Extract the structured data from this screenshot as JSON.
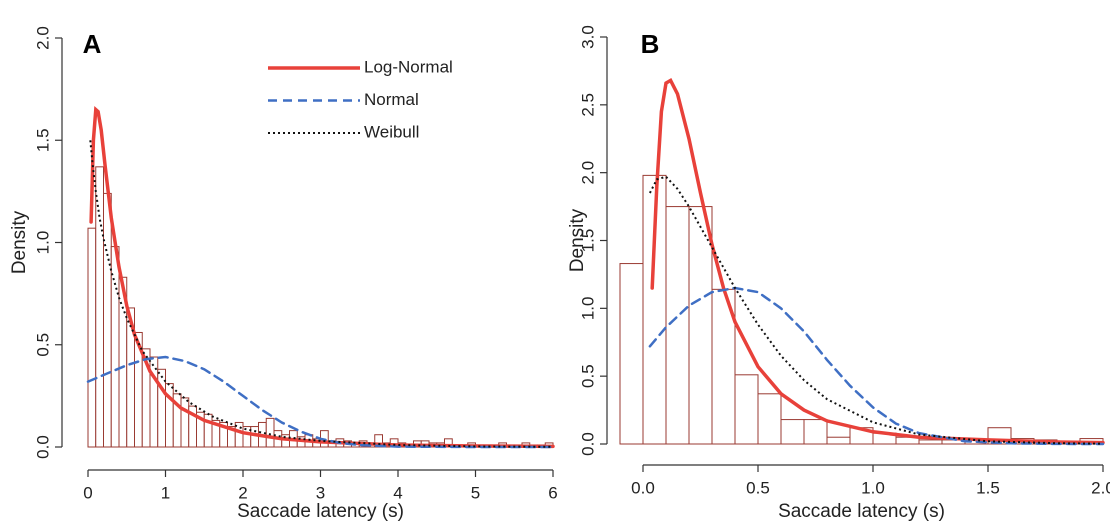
{
  "chart_data": [
    {
      "type": "histogram",
      "panel_label": "A",
      "x_label": "Saccade latency (s)",
      "y_label": "Density",
      "xlim": [
        0,
        6
      ],
      "xticks": [
        0,
        1,
        2,
        3,
        4,
        5,
        6
      ],
      "ylim": [
        0,
        2
      ],
      "yticks": [
        {
          "value": 0,
          "label": "0.0"
        },
        0.5,
        {
          "value": 1,
          "label": "1.0"
        },
        1.5,
        {
          "value": 2,
          "label": "2.0"
        }
      ],
      "bar_color": "#9a3a32",
      "legend": "upper right",
      "bins": [
        0,
        0.1,
        0.2,
        0.3,
        0.4,
        0.5,
        0.6,
        0.7,
        0.8,
        0.9,
        1,
        1.1,
        1.2,
        1.3,
        1.4,
        1.5,
        1.6,
        1.7,
        1.8,
        1.9,
        2,
        2.1,
        2.2,
        2.3,
        2.4,
        2.5,
        2.6,
        2.7,
        2.8,
        2.9,
        3,
        3.1,
        3.2,
        3.3,
        3.4,
        3.5,
        3.6,
        3.7,
        3.8,
        3.9,
        4,
        4.1,
        4.2,
        4.3,
        4.4,
        4.5,
        4.6,
        4.7,
        4.8,
        4.9,
        5,
        5.1,
        5.2,
        5.3,
        5.4,
        5.5,
        5.6,
        5.7,
        5.8,
        5.9,
        6
      ],
      "counts": [
        1.07,
        1.37,
        1.24,
        0.98,
        0.83,
        0.68,
        0.56,
        0.48,
        0.44,
        0.38,
        0.31,
        0.26,
        0.24,
        0.2,
        0.17,
        0.16,
        0.13,
        0.12,
        0.1,
        0.12,
        0.1,
        0.1,
        0.12,
        0.14,
        0.08,
        0.06,
        0.08,
        0.05,
        0.06,
        0.04,
        0.08,
        0.03,
        0.04,
        0.03,
        0.02,
        0.03,
        0.02,
        0.06,
        0.02,
        0.04,
        0.02,
        0.01,
        0.03,
        0.03,
        0.02,
        0.02,
        0.04,
        0.01,
        0.01,
        0.02,
        0.01,
        0.01,
        0.01,
        0.02,
        0.01,
        0.01,
        0.02,
        0.01,
        0.01,
        0.02
      ],
      "series": [
        {
          "name": "Log-Normal",
          "color": "#e8413a",
          "dash": "solid",
          "x": [
            0.04,
            0.07,
            0.1,
            0.13,
            0.17,
            0.22,
            0.3,
            0.4,
            0.5,
            0.6,
            0.8,
            1,
            1.2,
            1.5,
            2,
            2.5,
            3,
            4,
            5,
            6
          ],
          "values": [
            1.1,
            1.5,
            1.65,
            1.64,
            1.55,
            1.38,
            1.12,
            0.88,
            0.69,
            0.55,
            0.37,
            0.26,
            0.19,
            0.13,
            0.07,
            0.04,
            0.025,
            0.01,
            0.005,
            0.003
          ]
        },
        {
          "name": "Normal",
          "color": "#3f6fc4",
          "dash": "dashed",
          "x": [
            0,
            0.25,
            0.5,
            0.75,
            1,
            1.25,
            1.5,
            1.75,
            2,
            2.25,
            2.5,
            2.75,
            3,
            3.25,
            3.5,
            4,
            5,
            6
          ],
          "values": [
            0.32,
            0.36,
            0.4,
            0.43,
            0.44,
            0.42,
            0.38,
            0.32,
            0.25,
            0.18,
            0.12,
            0.075,
            0.04,
            0.02,
            0.01,
            0.002,
            0,
            0
          ]
        },
        {
          "name": "Weibull",
          "color": "#111111",
          "dash": "dotted",
          "x": [
            0.03,
            0.06,
            0.1,
            0.15,
            0.2,
            0.3,
            0.4,
            0.5,
            0.7,
            1,
            1.3,
            1.6,
            2,
            2.5,
            3,
            4,
            5,
            6
          ],
          "values": [
            1.5,
            1.38,
            1.25,
            1.12,
            1.02,
            0.86,
            0.73,
            0.63,
            0.47,
            0.32,
            0.22,
            0.15,
            0.09,
            0.05,
            0.03,
            0.01,
            0.003,
            0.001
          ]
        }
      ]
    },
    {
      "type": "histogram",
      "panel_label": "B",
      "x_label": "Saccade latency (s)",
      "y_label": "Density",
      "xlim": [
        -0.1,
        2
      ],
      "xticks": [
        {
          "value": 0,
          "label": "0.0"
        },
        0.5,
        {
          "value": 1,
          "label": "1.0"
        },
        1.5,
        {
          "value": 2,
          "label": "2.0"
        }
      ],
      "ylim": [
        0,
        3
      ],
      "yticks": [
        {
          "value": 0,
          "label": "0.0"
        },
        0.5,
        {
          "value": 1,
          "label": "1.0"
        },
        1.5,
        {
          "value": 2,
          "label": "2.0"
        },
        2.5,
        {
          "value": 3,
          "label": "3.0"
        }
      ],
      "bar_color": "#9a3a32",
      "bins": [
        -0.1,
        0,
        0.1,
        0.2,
        0.3,
        0.4,
        0.5,
        0.6,
        0.7,
        0.8,
        0.9,
        1,
        1.1,
        1.2,
        1.3,
        1.4,
        1.5,
        1.6,
        1.7,
        1.8,
        1.9,
        2
      ],
      "counts": [
        1.33,
        1.98,
        1.75,
        1.75,
        1.14,
        0.51,
        0.37,
        0.18,
        0.18,
        0.05,
        0.12,
        0.08,
        0.05,
        0.03,
        0.03,
        0.03,
        0.12,
        0.04,
        0.03,
        0.01,
        0.04
      ],
      "series": [
        {
          "color": "#e8413a",
          "dash": "solid",
          "x": [
            0.04,
            0.06,
            0.08,
            0.1,
            0.12,
            0.15,
            0.2,
            0.25,
            0.3,
            0.35,
            0.4,
            0.5,
            0.6,
            0.7,
            0.8,
            1,
            1.2,
            1.5,
            1.8,
            2
          ],
          "values": [
            1.15,
            1.9,
            2.45,
            2.66,
            2.68,
            2.58,
            2.25,
            1.85,
            1.47,
            1.15,
            0.9,
            0.57,
            0.37,
            0.25,
            0.17,
            0.09,
            0.05,
            0.03,
            0.015,
            0.01
          ]
        },
        {
          "color": "#3f6fc4",
          "dash": "dashed",
          "x": [
            0.03,
            0.1,
            0.2,
            0.3,
            0.4,
            0.5,
            0.6,
            0.7,
            0.8,
            0.9,
            1,
            1.1,
            1.2,
            1.4,
            1.6,
            1.8,
            2
          ],
          "values": [
            0.72,
            0.86,
            1.02,
            1.12,
            1.15,
            1.12,
            1,
            0.83,
            0.62,
            0.43,
            0.27,
            0.15,
            0.08,
            0.02,
            0.005,
            0.001,
            0
          ]
        },
        {
          "color": "#111111",
          "dash": "dotted",
          "x": [
            0.03,
            0.06,
            0.1,
            0.15,
            0.2,
            0.3,
            0.4,
            0.5,
            0.6,
            0.7,
            0.8,
            1,
            1.2,
            1.5,
            1.8,
            2
          ],
          "values": [
            1.85,
            1.95,
            1.97,
            1.88,
            1.75,
            1.45,
            1.15,
            0.88,
            0.65,
            0.47,
            0.33,
            0.16,
            0.07,
            0.02,
            0.006,
            0.002
          ]
        }
      ]
    }
  ]
}
